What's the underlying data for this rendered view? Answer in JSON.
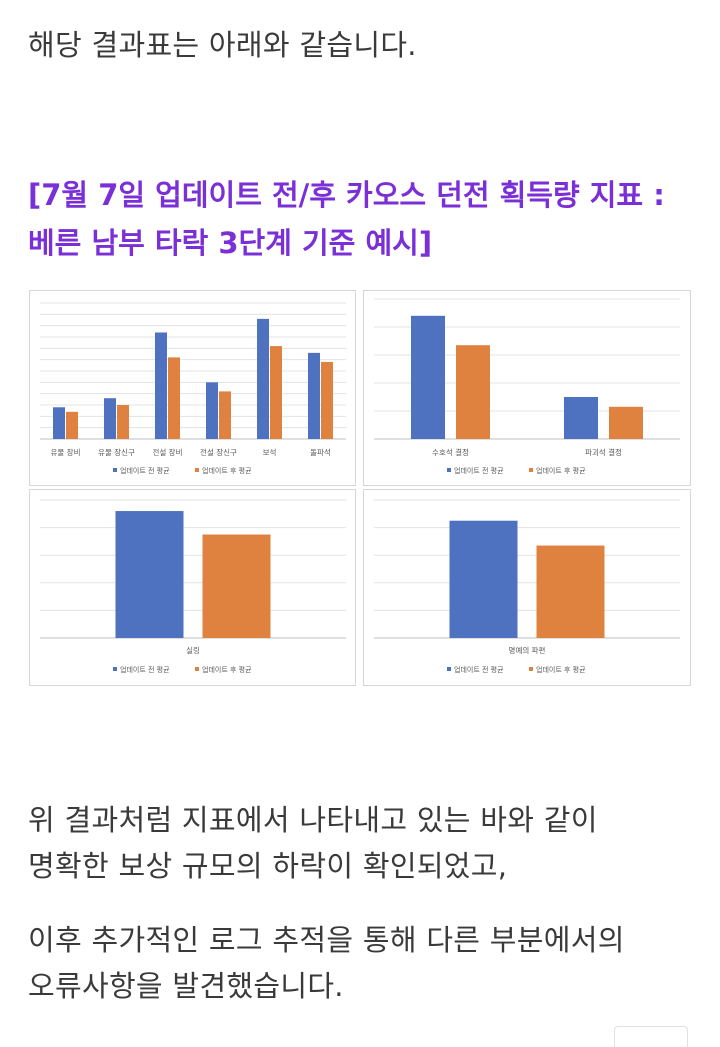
{
  "intro_text": "해당 결과표는 아래와 같습니다.",
  "heading": {
    "line1": "[7월 7일 업데이트 전/후 카오스 던전 획득량 지표 :",
    "line2": "베른 남부 타락 3단계 기준 예시]"
  },
  "legend": {
    "before": "업데이트 전 평균",
    "after": "업데이트 후 평균"
  },
  "colors": {
    "before": "#4f72c0",
    "after": "#e0823f",
    "heading": "#7b2fd6"
  },
  "chart_data": [
    {
      "type": "bar",
      "categories": [
        "유물 장비",
        "유물 장신구",
        "전설 장비",
        "전설 장신구",
        "보석",
        "돌파석"
      ],
      "series": [
        {
          "name": "업데이트 전 평균",
          "values": [
            14,
            18,
            47,
            25,
            53,
            38
          ]
        },
        {
          "name": "업데이트 후 평균",
          "values": [
            12,
            15,
            36,
            21,
            41,
            34
          ]
        }
      ],
      "ylim": [
        0,
        60
      ],
      "grid": true,
      "legend_position": "bottom"
    },
    {
      "type": "bar",
      "categories": [
        "수호석 결정",
        "파괴석 결정"
      ],
      "series": [
        {
          "name": "업데이트 전 평균",
          "values": [
            88,
            30
          ]
        },
        {
          "name": "업데이트 후 평균",
          "values": [
            67,
            23
          ]
        }
      ],
      "ylim": [
        0,
        100
      ],
      "grid": true,
      "legend_position": "bottom"
    },
    {
      "type": "bar",
      "categories": [
        "실링"
      ],
      "series": [
        {
          "name": "업데이트 전 평균",
          "values": [
            92
          ]
        },
        {
          "name": "업데이트 후 평균",
          "values": [
            75
          ]
        }
      ],
      "ylim": [
        0,
        100
      ],
      "grid": true,
      "legend_position": "bottom"
    },
    {
      "type": "bar",
      "categories": [
        "명예의 파편"
      ],
      "series": [
        {
          "name": "업데이트 전 평균",
          "values": [
            85
          ]
        },
        {
          "name": "업데이트 후 평균",
          "values": [
            67
          ]
        }
      ],
      "ylim": [
        0,
        100
      ],
      "grid": true,
      "legend_position": "bottom"
    }
  ],
  "body_text": {
    "p1_line1": "위 결과처럼 지표에서 나타내고 있는 바와 같이",
    "p1_line2": "명확한 보상 규모의 하락이 확인되었고,",
    "p2_line1": "이후 추가적인 로그 추적을 통해 다른 부분에서의",
    "p2_line2": "오류사항을 발견했습니다."
  }
}
